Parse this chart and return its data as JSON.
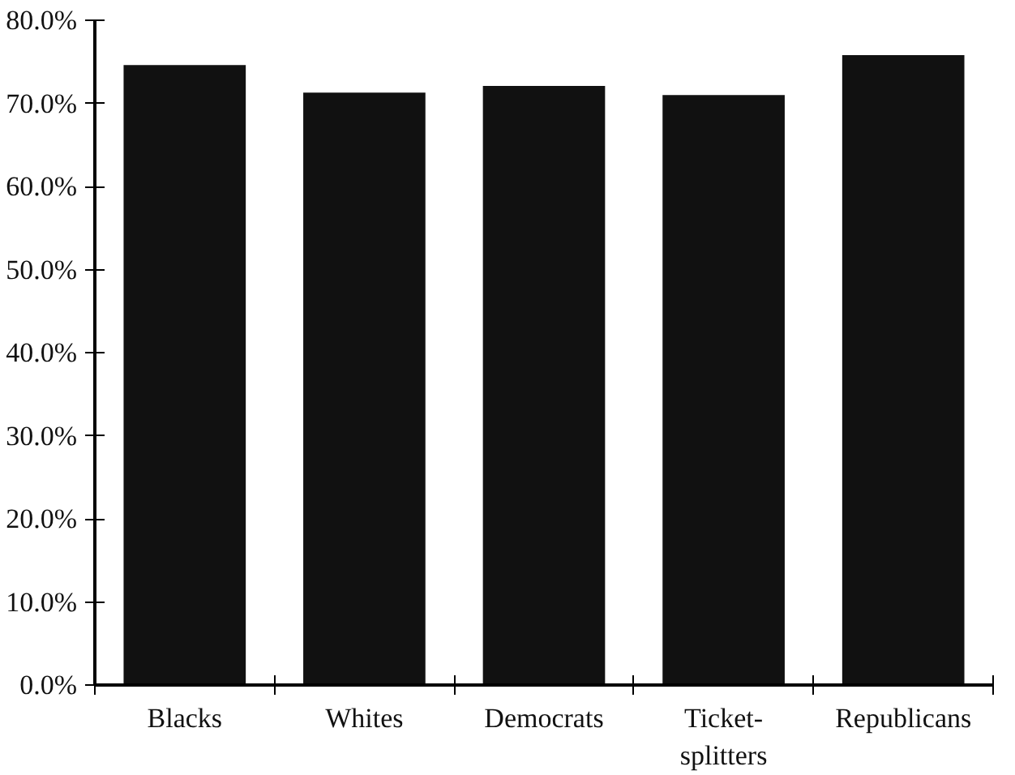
{
  "chart_data": {
    "type": "bar",
    "categories": [
      "Blacks",
      "Whites",
      "Democrats",
      "Ticket-\nsplitters",
      "Republicans"
    ],
    "values": [
      74.6,
      71.3,
      72.1,
      71.0,
      75.8
    ],
    "color": "#111111",
    "ylim": [
      0,
      80
    ],
    "yticks": [
      {
        "value": 0,
        "label": "0.0%"
      },
      {
        "value": 10,
        "label": "10.0%"
      },
      {
        "value": 20,
        "label": "20.0%"
      },
      {
        "value": 30,
        "label": "30.0%"
      },
      {
        "value": 40,
        "label": "40.0%"
      },
      {
        "value": 50,
        "label": "50.0%"
      },
      {
        "value": 60,
        "label": "60.0%"
      },
      {
        "value": 70,
        "label": "70.0%"
      },
      {
        "value": 80,
        "label": "80.0%"
      }
    ],
    "grid": false
  }
}
